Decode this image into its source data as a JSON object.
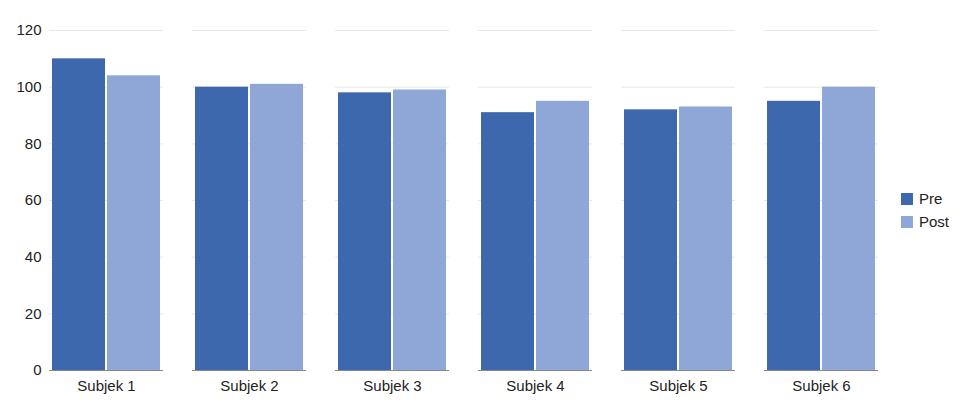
{
  "chart_data": {
    "type": "bar",
    "categories": [
      "Subjek 1",
      "Subjek 2",
      "Subjek 3",
      "Subjek 4",
      "Subjek 5",
      "Subjek 6"
    ],
    "series": [
      {
        "name": "Pre",
        "color": "#3d68ad",
        "values": [
          110,
          100,
          98,
          91,
          92,
          95
        ]
      },
      {
        "name": "Post",
        "color": "#8ea7d6",
        "values": [
          104,
          101,
          99,
          95,
          93,
          100
        ]
      }
    ],
    "ylim": [
      0,
      120
    ],
    "yticks": [
      0,
      20,
      40,
      60,
      80,
      100,
      120
    ],
    "grid": true,
    "legend": "right"
  }
}
